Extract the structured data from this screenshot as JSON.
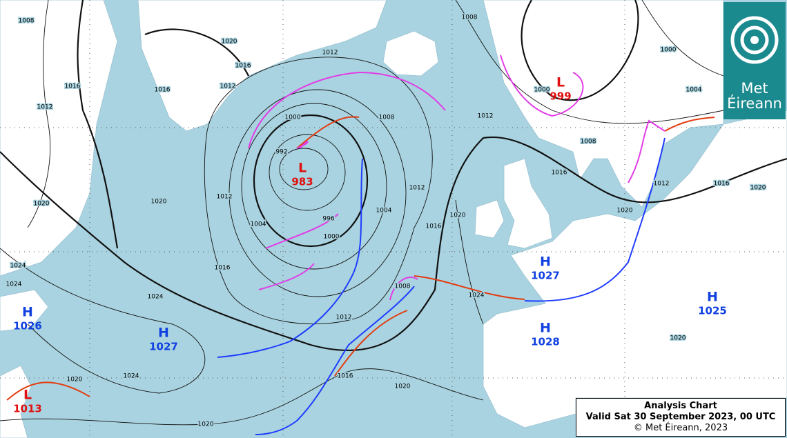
{
  "logo": {
    "line1": "Met",
    "line2": "Éireann"
  },
  "caption": {
    "title": "Analysis Chart",
    "valid": "Valid Sat 30 September 2023, 00 UTC",
    "copyright": "© Met Éireann, 2023"
  },
  "centers": [
    {
      "type": "L",
      "pressure": 983
    },
    {
      "type": "L",
      "pressure": 999
    },
    {
      "type": "H",
      "pressure": 1027
    },
    {
      "type": "H",
      "pressure": 1028
    },
    {
      "type": "H",
      "pressure": 1025
    },
    {
      "type": "H",
      "pressure": 1026
    },
    {
      "type": "H",
      "pressure": 1027
    },
    {
      "type": "L",
      "pressure": 1013
    }
  ],
  "isobar_labels": [
    1008,
    1020,
    1016,
    1012,
    1012,
    1016,
    1012,
    1016,
    1008,
    1000,
    1004,
    1000,
    1012,
    1008,
    1016,
    1012,
    1016,
    1020,
    1000,
    992,
    1008,
    1012,
    1016,
    1020,
    1004,
    1004,
    996,
    1000,
    1012,
    1020,
    1020,
    1016,
    1024,
    1024,
    1024,
    1008,
    1012,
    1024,
    1020,
    1016,
    1020,
    1024,
    1020,
    1020,
    1020
  ]
}
